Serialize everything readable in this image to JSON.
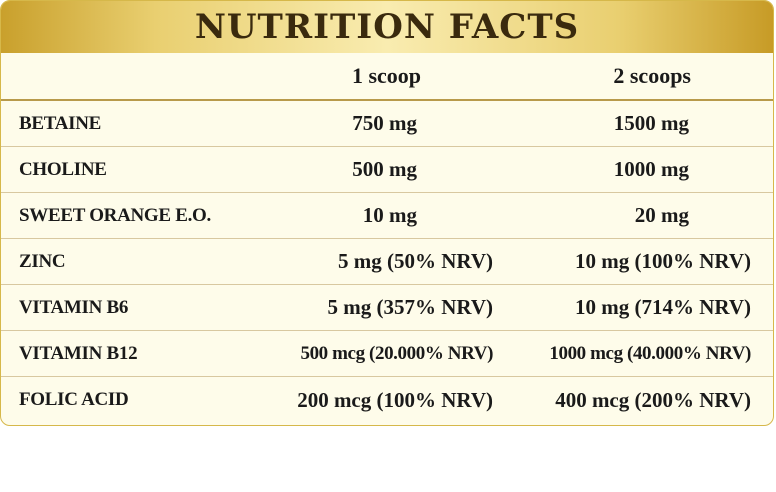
{
  "title": "NUTRITION FACTS",
  "columns": [
    "",
    "1 scoop",
    "2 scoops"
  ],
  "rows": [
    {
      "name": "BETAINE",
      "one": "750 mg",
      "two": "1500 mg"
    },
    {
      "name": "CHOLINE",
      "one": "500 mg",
      "two": "1000 mg"
    },
    {
      "name": "SWEET ORANGE E.O.",
      "one": "10 mg",
      "two": "20 mg"
    },
    {
      "name": "ZINC",
      "one": "5 mg (50% NRV)",
      "two": "10 mg (100% NRV)"
    },
    {
      "name": "VITAMIN B6",
      "one": "5 mg (357% NRV)",
      "two": "10 mg (714% NRV)"
    },
    {
      "name": "VITAMIN B12",
      "one": "500 mcg (20.000% NRV)",
      "two": "1000 mcg (40.000% NRV)"
    },
    {
      "name": "FOLIC ACID",
      "one": "200 mcg (100% NRV)",
      "two": "400 mcg (200% NRV)"
    }
  ],
  "colors": {
    "title_gold": "#e9cf70",
    "panel_bg": "#fefcea",
    "border": "#d6b84a"
  }
}
